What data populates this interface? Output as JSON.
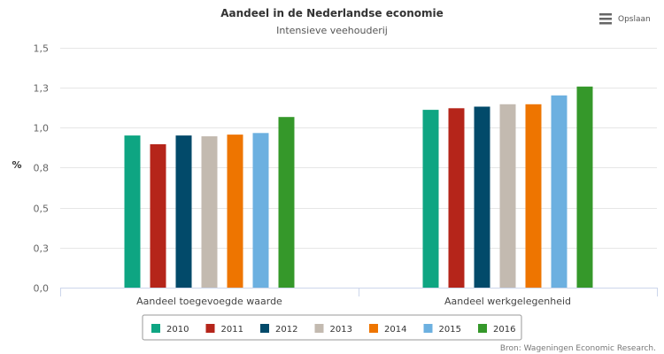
{
  "chart_data": {
    "type": "bar",
    "title": "Aandeel in de Nederlandse economie",
    "subtitle": "Intensieve veehouderij",
    "xlabel": "",
    "ylabel": "%",
    "ylim": [
      0,
      1.5
    ],
    "y_ticks": [
      {
        "value": 0,
        "label": "0,0"
      },
      {
        "value": 0.25,
        "label": "0,3"
      },
      {
        "value": 0.5,
        "label": "0,5"
      },
      {
        "value": 0.75,
        "label": "0,8"
      },
      {
        "value": 1.0,
        "label": "1,0"
      },
      {
        "value": 1.25,
        "label": "1,3"
      },
      {
        "value": 1.5,
        "label": "1,5"
      }
    ],
    "grid": true,
    "categories": [
      "Aandeel toegevoegde waarde",
      "Aandeel werkgelegenheid"
    ],
    "series": [
      {
        "name": "2010",
        "color": "#0ea582",
        "values": [
          0.95,
          1.11
        ]
      },
      {
        "name": "2011",
        "color": "#b5251a",
        "values": [
          0.895,
          1.12
        ]
      },
      {
        "name": "2012",
        "color": "#024a6a",
        "values": [
          0.95,
          1.13
        ]
      },
      {
        "name": "2013",
        "color": "#c3bab0",
        "values": [
          0.945,
          1.145
        ]
      },
      {
        "name": "2014",
        "color": "#ee7500",
        "values": [
          0.955,
          1.145
        ]
      },
      {
        "name": "2015",
        "color": "#6cb0e0",
        "values": [
          0.965,
          1.2
        ]
      },
      {
        "name": "2016",
        "color": "#35982a",
        "values": [
          1.065,
          1.255
        ]
      }
    ],
    "legend_position": "bottom-center",
    "credits": "Bron: Wageningen Economic Research."
  },
  "toolbar": {
    "save_label": "Opslaan",
    "save_icon": "hamburger-menu-icon"
  }
}
